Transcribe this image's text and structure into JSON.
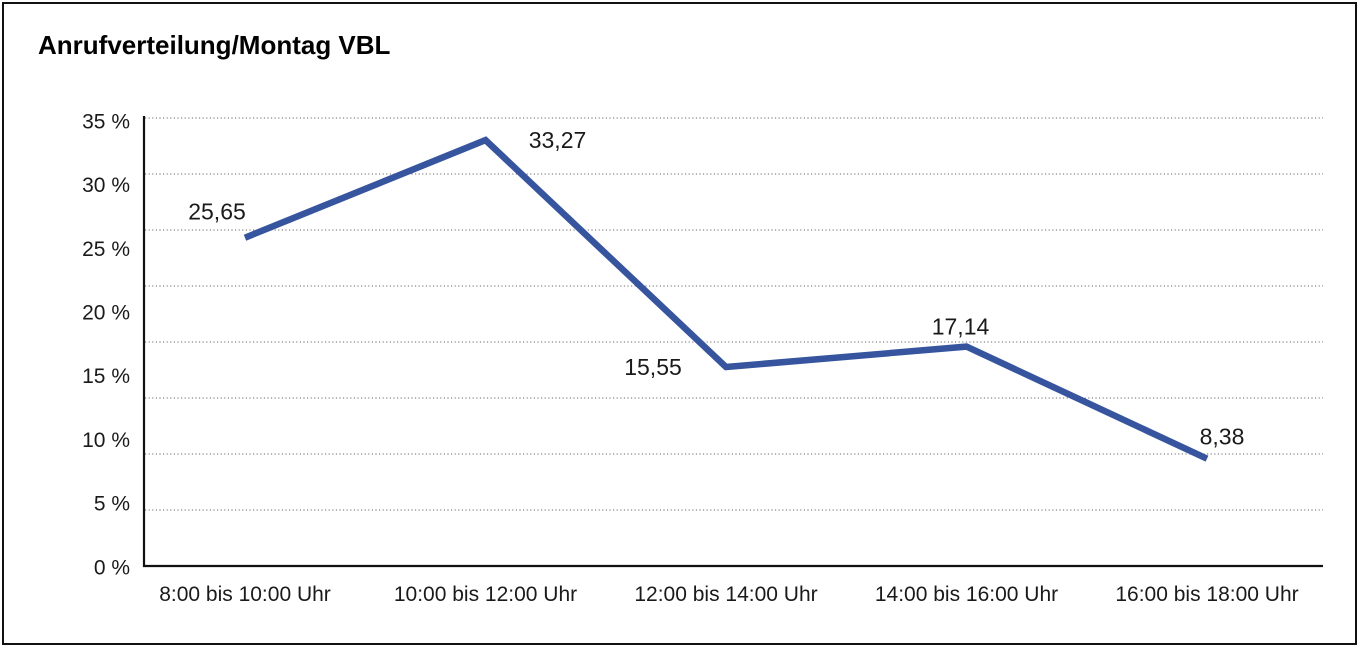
{
  "frame": {
    "border_color": "#111111",
    "background_color": "#ffffff"
  },
  "chart_data": {
    "type": "line",
    "title": "Anrufverteilung/Montag VBL",
    "categories": [
      "8:00 bis 10:00 Uhr",
      "10:00 bis 12:00 Uhr",
      "12:00 bis 14:00 Uhr",
      "14:00 bis 16:00 Uhr",
      "16:00 bis 18:00 Uhr"
    ],
    "values": [
      25.65,
      33.27,
      15.55,
      17.14,
      8.38
    ],
    "value_labels": [
      "25,65",
      "33,27",
      "15,55",
      "17,14",
      "8,38"
    ],
    "y_ticks": [
      "35 %",
      "30 %",
      "25 %",
      "20 %",
      "15 %",
      "10 %",
      "5 %",
      "0 %"
    ],
    "ylim": [
      0,
      35
    ],
    "xlabel": "",
    "ylabel": "",
    "grid": "horizontal-dotted",
    "gridline_count": 9,
    "legend_position": "none",
    "series_color": "#36559e",
    "grid_color": "#6b6b6b",
    "axis_color": "#111111",
    "text_color": "#1a1a1a"
  }
}
